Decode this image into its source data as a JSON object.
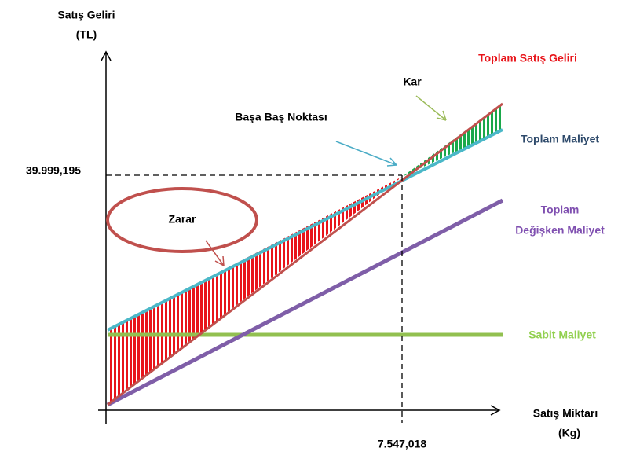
{
  "y_axis": {
    "label": [
      "Satış Geliri",
      "(TL)"
    ]
  },
  "x_axis": {
    "label": [
      "Satış Miktarı",
      "(Kg)"
    ]
  },
  "break_even": {
    "label": "Başa Baş Noktası",
    "revenue": "39.999,195",
    "quantity": "7.547,018"
  },
  "labels": {
    "total_revenue": "Toplam Satış Geliri",
    "total_cost": "Toplam Maliyet",
    "variable_cost": [
      "Toplam",
      "Değişken Maliyet"
    ],
    "fixed_cost": "Sabit Maliyet",
    "profit": "Kar",
    "loss": "Zarar"
  }
}
